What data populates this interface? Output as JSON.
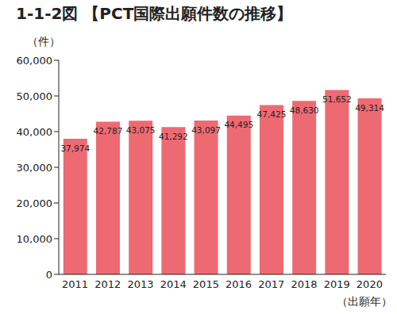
{
  "chart_data": {
    "type": "bar",
    "title": "1-1-2図 【PCT国際出願件数の推移】",
    "y_label": "（件）",
    "x_label": "（出願年）",
    "categories": [
      "2011",
      "2012",
      "2013",
      "2014",
      "2015",
      "2016",
      "2017",
      "2018",
      "2019",
      "2020"
    ],
    "values": [
      37974,
      42787,
      43075,
      41292,
      43097,
      44495,
      47425,
      48630,
      51652,
      49314
    ],
    "value_labels": [
      "37,974",
      "42,787",
      "43,075",
      "41,292",
      "43,097",
      "44,495",
      "47,425",
      "48,630",
      "51,652",
      "49,314"
    ],
    "color": "#ee6a73",
    "ylim": [
      0,
      60000
    ],
    "yticks": [
      0,
      {
        "value": 10000,
        "label": "10,000"
      },
      {
        "value": 20000,
        "label": "20,000"
      },
      {
        "value": 30000,
        "label": "30,000"
      },
      {
        "value": 40000,
        "label": "40,000"
      },
      {
        "value": 50000,
        "label": "50,000"
      },
      {
        "value": 60000,
        "label": "60,000"
      }
    ],
    "grid": false,
    "data_labels": true
  }
}
